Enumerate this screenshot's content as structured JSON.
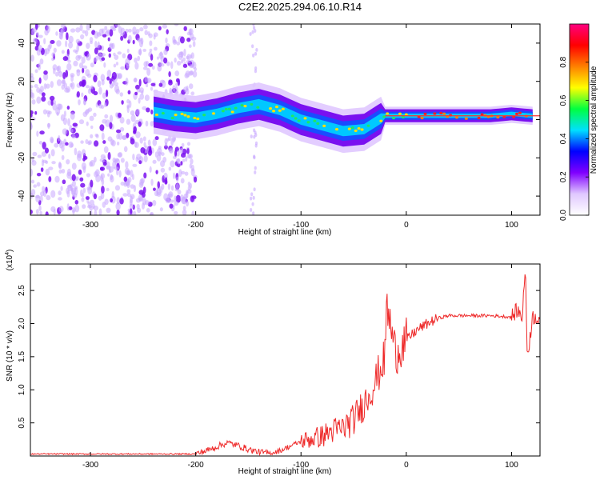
{
  "title": "C2E2.2025.294.06.10.R14",
  "colors": {
    "snr_line": "#ee2a2a",
    "ridge": "#1e90ff",
    "background": "#ffffff"
  },
  "chart_data": [
    {
      "type": "heatmap",
      "title": "C2E2.2025.294.06.10.R14",
      "xlabel": "Height of straight line (km)",
      "ylabel": "Frequency (Hz)",
      "xlim": [
        -357,
        127
      ],
      "ylim": [
        -50,
        50
      ],
      "x_ticks": [
        -300,
        -200,
        -100,
        0,
        100
      ],
      "x_tick_labels": [
        "-300",
        "-200",
        "-100",
        "0",
        "100"
      ],
      "y_ticks": [
        -40,
        -20,
        0,
        20,
        40
      ],
      "y_tick_labels": [
        "-40",
        "-20",
        "0",
        "20",
        "40"
      ],
      "colorbar": {
        "label": "Normalized spectral amplitude",
        "range": [
          0,
          1
        ],
        "ticks": [
          0.0,
          0.2,
          0.4,
          0.6,
          0.8
        ],
        "tick_labels": [
          "0.0",
          "0.2",
          "0.4",
          "0.6",
          "0.8"
        ],
        "colormap": [
          "#ffffff",
          "#e0c8ff",
          "#8000ff",
          "#0000ff",
          "#00e0ff",
          "#00ff40",
          "#ffff00",
          "#ff8000",
          "#ff0000",
          "#ff0080"
        ]
      },
      "ridge": {
        "x": [
          -240,
          -220,
          -200,
          -180,
          -160,
          -140,
          -120,
          -100,
          -80,
          -60,
          -40,
          -20,
          0,
          20,
          40,
          60,
          80,
          100,
          120
        ],
        "y": [
          4,
          2,
          1,
          3,
          6,
          8,
          5,
          0,
          -3,
          -6,
          -5,
          2,
          2,
          2,
          2,
          2,
          2,
          3,
          2
        ]
      },
      "noise_region_km": [
        -357,
        -200
      ]
    },
    {
      "type": "line",
      "xlabel": "Height of straight line (km)",
      "ylabel": "SNR (10 * v/v)",
      "y_scale_label": "(x10",
      "y_scale_exponent": "4",
      "y_scale_suffix": ")",
      "xlim": [
        -357,
        127
      ],
      "ylim": [
        0,
        2.9
      ],
      "x_ticks": [
        -300,
        -200,
        -100,
        0,
        100
      ],
      "x_tick_labels": [
        "-300",
        "-200",
        "-100",
        "0",
        "100"
      ],
      "y_ticks": [
        0.5,
        1.0,
        1.5,
        2.0,
        2.5
      ],
      "y_tick_labels": [
        "0.5",
        "1.0",
        "1.5",
        "2.0",
        "2.5"
      ],
      "series": [
        {
          "name": "SNR",
          "x": [
            -357,
            -200,
            -190,
            -180,
            -170,
            -160,
            -150,
            -140,
            -130,
            -120,
            -110,
            -100,
            -90,
            -80,
            -70,
            -60,
            -50,
            -40,
            -30,
            -20,
            -19,
            -10,
            0,
            10,
            20,
            30,
            40,
            50,
            60,
            70,
            80,
            90,
            100,
            105,
            110,
            113,
            115,
            120,
            127
          ],
          "y": [
            0.03,
            0.03,
            0.08,
            0.14,
            0.2,
            0.16,
            0.1,
            0.06,
            0.04,
            0.08,
            0.15,
            0.22,
            0.26,
            0.3,
            0.38,
            0.42,
            0.55,
            0.8,
            1.1,
            1.5,
            2.3,
            1.55,
            1.75,
            1.9,
            2.0,
            2.08,
            2.12,
            2.12,
            2.12,
            2.12,
            2.12,
            2.11,
            2.1,
            2.2,
            2.1,
            2.85,
            1.5,
            2.1,
            2.1
          ]
        }
      ]
    }
  ]
}
